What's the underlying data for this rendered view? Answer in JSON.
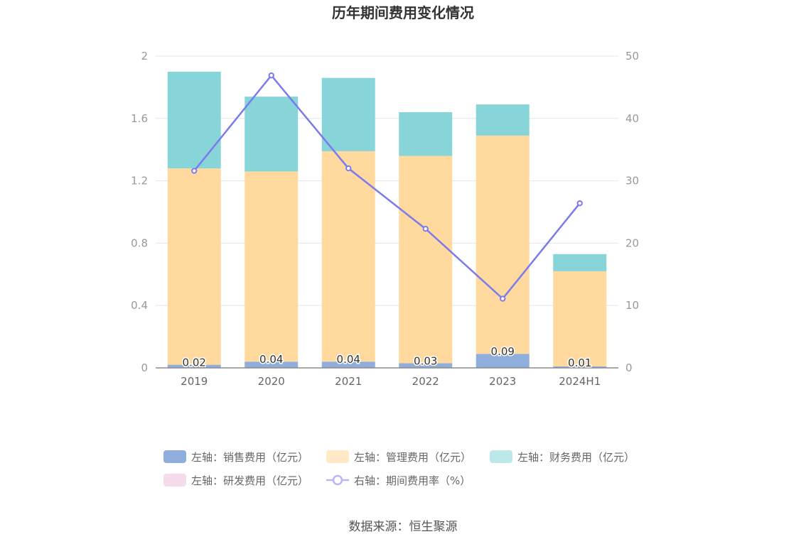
{
  "chart_data": {
    "type": "bar",
    "stacked": true,
    "title": "历年期间费用变化情况",
    "categories": [
      "2019",
      "2020",
      "2021",
      "2022",
      "2023",
      "2024H1"
    ],
    "left_axis": {
      "ylim": [
        0,
        2
      ],
      "ticks": [
        "0",
        "0.4",
        "0.8",
        "1.2",
        "1.6",
        "2"
      ]
    },
    "right_axis": {
      "ylim": [
        0,
        50
      ],
      "ticks": [
        "0",
        "10",
        "20",
        "30",
        "40",
        "50"
      ]
    },
    "series": [
      {
        "name": "左轴：销售费用（亿元）",
        "axis": "left",
        "type": "bar",
        "color": "#8FAEDB",
        "values": [
          0.02,
          0.04,
          0.04,
          0.03,
          0.09,
          0.01
        ],
        "labels": [
          "0.02",
          "0.04",
          "0.04",
          "0.03",
          "0.09",
          "0.01"
        ]
      },
      {
        "name": "左轴：管理费用（亿元）",
        "axis": "left",
        "type": "bar",
        "color": "#FFD99E",
        "legend_color": "#FFE9C6",
        "values": [
          1.26,
          1.22,
          1.35,
          1.33,
          1.4,
          0.61
        ]
      },
      {
        "name": "左轴：财务费用（亿元）",
        "axis": "left",
        "type": "bar",
        "color": "#87D5D9",
        "legend_color": "#BDE8EA",
        "values": [
          0.62,
          0.48,
          0.47,
          0.28,
          0.2,
          0.11
        ]
      },
      {
        "name": "左轴：研发费用（亿元）",
        "axis": "left",
        "type": "bar",
        "color": "#F2C9E3",
        "legend_color": "#F5DCEC",
        "values": [
          0,
          0,
          0,
          0,
          0,
          0
        ]
      },
      {
        "name": "右轴：期间费用率（%）",
        "axis": "right",
        "type": "line",
        "color": "#7B7BEE",
        "legend_color": "#B7B7F4",
        "values": [
          31.6,
          46.9,
          32.0,
          22.3,
          11.1,
          26.4
        ]
      }
    ],
    "source": "数据来源：恒生聚源"
  }
}
